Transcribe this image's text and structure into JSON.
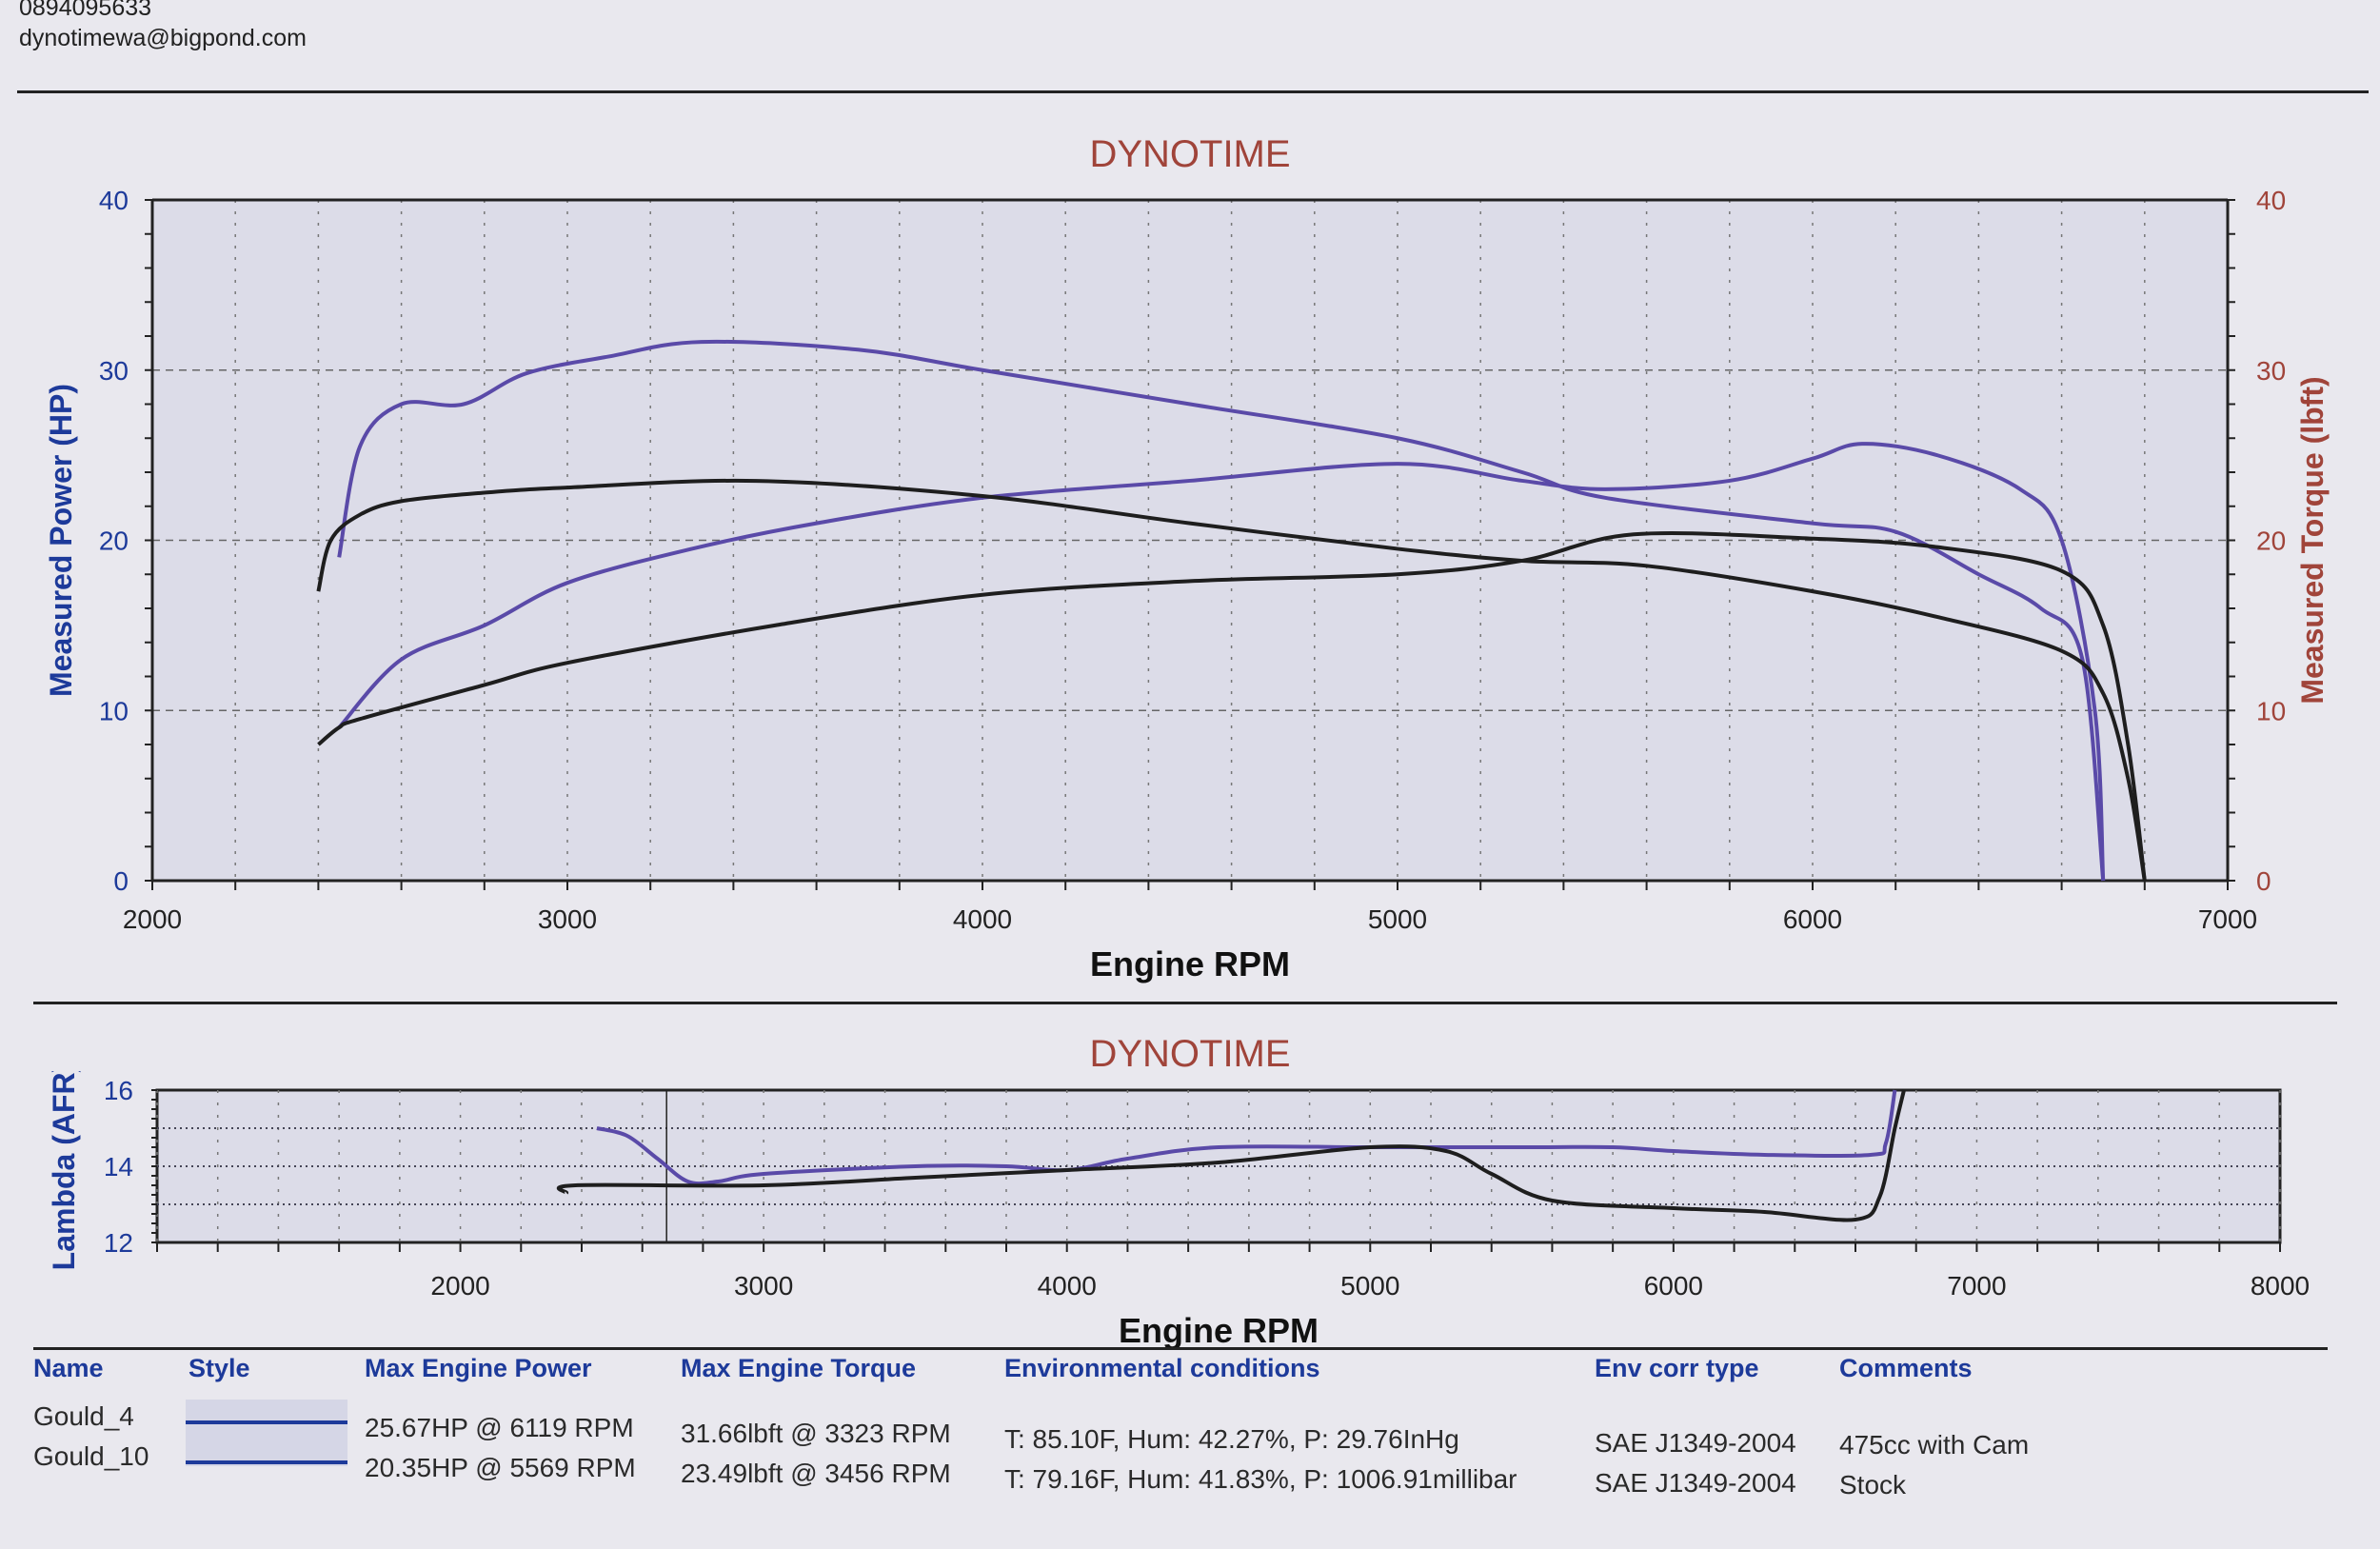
{
  "header": {
    "phone": "0894095633",
    "email": "dynotimewa@bigpond.com"
  },
  "chart_data": [
    {
      "type": "line",
      "title": "DYNOTIME",
      "xlabel": "Engine RPM",
      "ylabel": "Measured Power (HP)",
      "y2label": "Measured Torque (lbft)",
      "xlim": [
        2000,
        7000
      ],
      "ylim": [
        0,
        40
      ],
      "y2lim": [
        0,
        40
      ],
      "xticks": [
        2000,
        3000,
        4000,
        5000,
        6000,
        7000
      ],
      "yticks": [
        0,
        10,
        20,
        30,
        40
      ],
      "y2ticks": [
        0,
        10,
        20,
        30,
        40
      ],
      "grid": true,
      "colors": {
        "Gould_4": "#5a4aa8",
        "Gould_10": "#1e1e1e"
      },
      "series": [
        {
          "name": "Gould_4",
          "quantity": "power",
          "axis": "left",
          "x": [
            2450,
            2600,
            2800,
            3000,
            3300,
            3600,
            4000,
            4500,
            5000,
            5300,
            5500,
            5800,
            6000,
            6119,
            6300,
            6500,
            6600,
            6680,
            6700
          ],
          "y": [
            9,
            13,
            15,
            17.5,
            19.5,
            21,
            22.5,
            23.5,
            24.5,
            23.5,
            23,
            23.5,
            24.8,
            25.67,
            25,
            23,
            20,
            10,
            0
          ]
        },
        {
          "name": "Gould_4",
          "quantity": "torque",
          "axis": "right",
          "x": [
            2450,
            2500,
            2600,
            2750,
            2900,
            3100,
            3323,
            3700,
            4000,
            4500,
            5000,
            5300,
            5500,
            6000,
            6200,
            6400,
            6550,
            6650,
            6700
          ],
          "y": [
            19,
            25.5,
            28,
            28,
            29.8,
            30.8,
            31.66,
            31.2,
            30,
            28,
            26,
            24,
            22.5,
            21,
            20.5,
            18,
            16,
            13,
            0
          ]
        },
        {
          "name": "Gould_10",
          "quantity": "power",
          "axis": "left",
          "x": [
            2400,
            2450,
            2500,
            2800,
            3000,
            3500,
            4000,
            4500,
            5000,
            5300,
            5569,
            6000,
            6300,
            6600,
            6700,
            6760,
            6800
          ],
          "y": [
            8,
            9,
            9.5,
            11.5,
            12.8,
            15,
            16.8,
            17.6,
            18,
            18.8,
            20.35,
            20.1,
            19.6,
            18.2,
            15,
            8,
            0
          ]
        },
        {
          "name": "Gould_10",
          "quantity": "torque",
          "axis": "right",
          "x": [
            2400,
            2430,
            2500,
            2600,
            2800,
            3000,
            3456,
            4000,
            4500,
            5000,
            5300,
            5600,
            6000,
            6300,
            6600,
            6700,
            6760,
            6800
          ],
          "y": [
            17,
            20,
            21.5,
            22.3,
            22.8,
            23.1,
            23.49,
            22.6,
            21,
            19.5,
            18.8,
            18.5,
            17,
            15.5,
            13.5,
            11,
            6,
            0
          ]
        }
      ]
    },
    {
      "type": "line",
      "title": "DYNOTIME",
      "xlabel": "Engine RPM",
      "ylabel": "Lambda (AFR)",
      "xlim": [
        1000,
        8000
      ],
      "ylim": [
        12,
        16
      ],
      "xticks": [
        2000,
        3000,
        4000,
        5000,
        6000,
        7000,
        8000
      ],
      "yticks": [
        12,
        14,
        16
      ],
      "grid": true,
      "cursor_rpm": 2680,
      "series": [
        {
          "name": "Gould_4",
          "x": [
            2450,
            2550,
            2650,
            2750,
            2850,
            3000,
            3500,
            3800,
            4000,
            4200,
            4500,
            5000,
            5500,
            5800,
            6000,
            6300,
            6650,
            6700,
            6730
          ],
          "y": [
            15,
            14.8,
            14.2,
            13.6,
            13.6,
            13.8,
            14,
            14,
            13.9,
            14.2,
            14.5,
            14.5,
            14.5,
            14.5,
            14.4,
            14.3,
            14.3,
            14.6,
            16
          ]
        },
        {
          "name": "Gould_10",
          "x": [
            2350,
            2380,
            3000,
            3500,
            4000,
            4500,
            5000,
            5250,
            5400,
            5600,
            6000,
            6300,
            6600,
            6680,
            6730,
            6760
          ],
          "y": [
            13.3,
            13.5,
            13.5,
            13.7,
            13.9,
            14.1,
            14.5,
            14.4,
            13.8,
            13.1,
            12.9,
            12.8,
            12.6,
            13.2,
            15,
            16
          ]
        }
      ]
    }
  ],
  "table": {
    "headers": [
      "Name",
      "Style",
      "Max Engine Power",
      "Max Engine Torque",
      "Environmental conditions",
      "Env corr type",
      "Comments"
    ],
    "rows": [
      {
        "name": "Gould_4",
        "power": "25.67HP @ 6119 RPM",
        "torque": "31.66lbft @ 3323 RPM",
        "env": "T: 85.10F, Hum: 42.27%, P: 29.76InHg",
        "corr": "SAE J1349-2004",
        "comments": "475cc with Cam"
      },
      {
        "name": "Gould_10",
        "power": "20.35HP @ 5569 RPM",
        "torque": "23.49lbft @ 3456 RPM",
        "env": "T: 79.16F, Hum: 41.83%, P: 1006.91millibar",
        "corr": "SAE J1349-2004",
        "comments": "Stock"
      }
    ]
  }
}
